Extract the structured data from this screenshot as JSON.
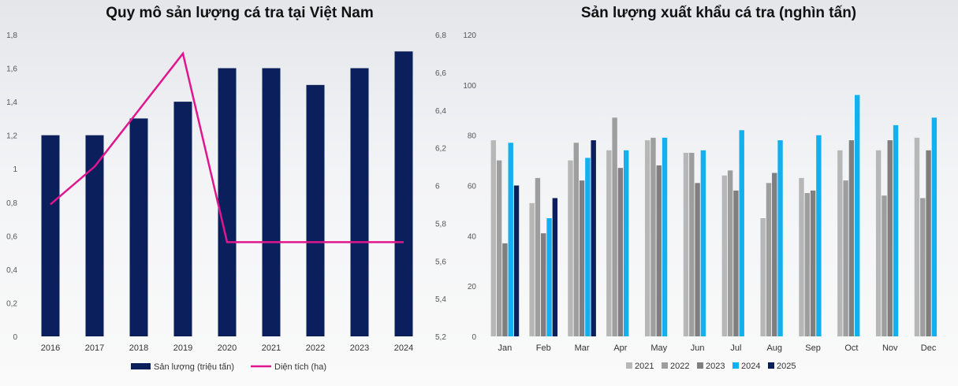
{
  "chart_data": [
    {
      "type": "bar",
      "title": "Quy mô sản lượng cá tra tại Việt Nam",
      "categories": [
        "2016",
        "2017",
        "2018",
        "2019",
        "2020",
        "2021",
        "2022",
        "2023",
        "2024"
      ],
      "series": [
        {
          "name": "Sản lượng (triệu tấn)",
          "type": "bar",
          "axis": "left",
          "color": "#0b1f5c",
          "values": [
            1.2,
            1.2,
            1.3,
            1.4,
            1.6,
            1.6,
            1.5,
            1.6,
            1.7
          ]
        },
        {
          "name": "Diện tích (ha)",
          "type": "line",
          "axis": "right",
          "color": "#e0168f",
          "values": [
            5.9,
            6.1,
            6.4,
            6.7,
            5.7,
            5.7,
            5.7,
            5.7,
            5.7
          ]
        }
      ],
      "ylim_left": [
        0,
        1.8
      ],
      "yticks_left": [
        "0",
        "0,2",
        "0,4",
        "0,6",
        "0,8",
        "1",
        "1,2",
        "1,4",
        "1,6",
        "1,8"
      ],
      "ylim_right": [
        5.2,
        6.8
      ],
      "yticks_right": [
        "5,2",
        "5,4",
        "5,6",
        "5,8",
        "6",
        "6,2",
        "6,4",
        "6,6",
        "6,8"
      ],
      "legend_position": "bottom",
      "grid": false
    },
    {
      "type": "bar",
      "title": "Sản lượng xuất khẩu cá tra (nghìn tấn)",
      "categories": [
        "Jan",
        "Feb",
        "Mar",
        "Apr",
        "May",
        "Jun",
        "Jul",
        "Aug",
        "Sep",
        "Oct",
        "Nov",
        "Dec"
      ],
      "series": [
        {
          "name": "2021",
          "color": "#b7b7b7",
          "values": [
            78,
            53,
            70,
            74,
            78,
            73,
            64,
            47,
            63,
            74,
            74,
            79
          ]
        },
        {
          "name": "2022",
          "color": "#9e9e9e",
          "values": [
            70,
            63,
            77,
            87,
            79,
            73,
            66,
            61,
            57,
            62,
            56,
            55
          ]
        },
        {
          "name": "2023",
          "color": "#7f7f7f",
          "values": [
            37,
            41,
            62,
            67,
            68,
            61,
            58,
            65,
            58,
            78,
            78,
            74
          ]
        },
        {
          "name": "2024",
          "color": "#12b0ee",
          "values": [
            77,
            47,
            71,
            74,
            79,
            74,
            82,
            78,
            80,
            96,
            84,
            87
          ]
        },
        {
          "name": "2025",
          "color": "#0b1f5c",
          "values": [
            60,
            55,
            78,
            null,
            null,
            null,
            null,
            null,
            null,
            null,
            null,
            null
          ]
        }
      ],
      "ylim": [
        0,
        120
      ],
      "yticks": [
        "0",
        "20",
        "40",
        "60",
        "80",
        "100",
        "120"
      ],
      "legend_position": "bottom",
      "grid": false
    }
  ]
}
